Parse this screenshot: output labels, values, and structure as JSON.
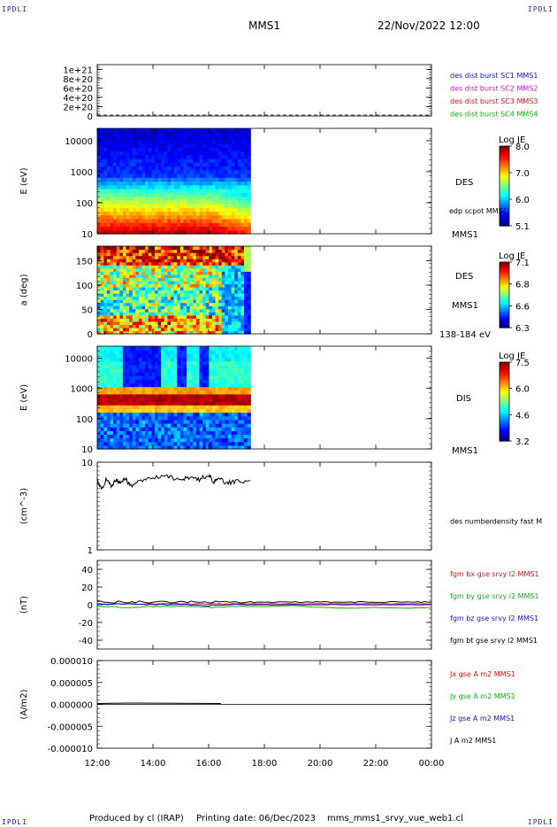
{
  "corner_label": "IPDLI",
  "header": {
    "spacecraft": "MMS1",
    "datetime": "22/Nov/2022 12:00"
  },
  "footer": {
    "produced_by": "Produced by cl (IRAP)",
    "printing_date": "Printing date: 06/Dec/2023",
    "file_name": "mms_mms1_srvy_vue_web1.cl"
  },
  "chart_data": [
    {
      "type": "line",
      "panel": "burst-distribution-flags",
      "yticks": [
        "1e+21",
        "8e+20",
        "6e+20",
        "4e+20",
        "2e+20",
        "0"
      ],
      "ylim": [
        0,
        1.1e+21
      ],
      "legend": [
        {
          "text": "des dist burst SC1 MMS1",
          "color": "#1010e0"
        },
        {
          "text": "des dist burst SC2 MMS2",
          "color": "#d010d0"
        },
        {
          "text": "des dist burst SC3 MMS3",
          "color": "#e01010"
        },
        {
          "text": "des dist burst SC4 MMS4",
          "color": "#10b010"
        }
      ],
      "baseline": 0
    },
    {
      "type": "heatmap",
      "panel": "des-energy-spectrogram",
      "ylabel": "E (eV)",
      "yscale": "log",
      "yticks": [
        "10000",
        "1000",
        "100",
        "10"
      ],
      "ylim": [
        10,
        25000
      ],
      "data_end": "17:30",
      "colorbar": {
        "title": "Log JE",
        "ticks": [
          "8.0",
          "7.0",
          "6.0",
          "5.1"
        ]
      },
      "labels": [
        "DES",
        "edp scpot MMS1",
        "MMS1"
      ]
    },
    {
      "type": "heatmap",
      "panel": "des-pitch-angle",
      "ylabel": "a (deg)",
      "yticks": [
        "150",
        "100",
        "50",
        "0"
      ],
      "ylim": [
        0,
        180
      ],
      "data_end": "17:30",
      "colorbar": {
        "title": "Log JE",
        "ticks": [
          "7.1",
          "6.8",
          "6.6",
          "6.3"
        ]
      },
      "labels": [
        "DES",
        "MMS1",
        "138-184 eV"
      ]
    },
    {
      "type": "heatmap",
      "panel": "dis-energy-spectrogram",
      "ylabel": "E (eV)",
      "yscale": "log",
      "yticks": [
        "10000",
        "1000",
        "100",
        "10"
      ],
      "ylim": [
        10,
        25000
      ],
      "data_end": "17:30",
      "colorbar": {
        "title": "Log JE",
        "ticks": [
          "7.5",
          "6.0",
          "4.6",
          "3.2"
        ]
      },
      "labels": [
        "DIS",
        "MMS1"
      ]
    },
    {
      "type": "line",
      "panel": "density",
      "ylabel": "(cm^-3)",
      "yscale": "log",
      "yticks": [
        "10",
        "1"
      ],
      "ylim": [
        1,
        10
      ],
      "series": [
        {
          "name": "des numberdensity fast M",
          "color": "#000000",
          "x": [
            "12:00",
            "12:10",
            "12:20",
            "12:30",
            "12:40",
            "12:50",
            "13:00",
            "13:10",
            "13:30",
            "14:00",
            "14:30",
            "15:00",
            "15:20",
            "15:40",
            "16:00",
            "16:10",
            "16:20",
            "16:40",
            "17:00",
            "17:30"
          ],
          "y": [
            6.2,
            5.0,
            6.4,
            5.2,
            6.3,
            5.8,
            6.6,
            5.4,
            6.0,
            6.6,
            6.9,
            6.3,
            6.7,
            6.3,
            7.3,
            6.0,
            6.5,
            5.8,
            6.0,
            6.2
          ]
        }
      ]
    },
    {
      "type": "line",
      "panel": "magnetic-field",
      "ylabel": "(nT)",
      "yticks": [
        "40",
        "20",
        "0",
        "-20",
        "-40"
      ],
      "ylim": [
        -50,
        50
      ],
      "series": [
        {
          "name": "fgm bx gse srvy l2 MMS1",
          "color": "#e01010",
          "x": [
            "12:00",
            "13:00",
            "14:00",
            "15:00",
            "16:00",
            "17:00",
            "18:00",
            "19:00",
            "20:00",
            "21:00",
            "22:00",
            "23:00",
            "00:00"
          ],
          "y": [
            1,
            1,
            1,
            1,
            1,
            1,
            1,
            1,
            1,
            1,
            1,
            1,
            1
          ]
        },
        {
          "name": "fgm by gse srvy l2 MMS1",
          "color": "#10b010",
          "x": [
            "12:00",
            "13:00",
            "14:00",
            "15:00",
            "16:00",
            "17:00",
            "18:00",
            "19:00",
            "20:00",
            "21:00",
            "22:00",
            "23:00",
            "00:00"
          ],
          "y": [
            -2,
            -3,
            -2,
            -2,
            -3,
            -2,
            -2,
            -1,
            -3,
            -4,
            -3,
            -4,
            -3
          ]
        },
        {
          "name": "fgm bz gse srvy l2 MMS1",
          "color": "#1010e0",
          "x": [
            "12:00",
            "13:00",
            "14:00",
            "15:00",
            "16:00",
            "17:00",
            "18:00",
            "19:00",
            "20:00",
            "21:00",
            "22:00",
            "23:00",
            "00:00"
          ],
          "y": [
            0,
            1,
            0,
            0,
            -1,
            0,
            0,
            0,
            0,
            0,
            0,
            0,
            0
          ]
        },
        {
          "name": "fgm bt gse srvy l2 MMS1",
          "color": "#000000",
          "x": [
            "12:00",
            "13:00",
            "14:00",
            "15:00",
            "16:00",
            "17:00",
            "18:00",
            "19:00",
            "20:00",
            "21:00",
            "22:00",
            "23:00",
            "00:00"
          ],
          "y": [
            3,
            3,
            3,
            3,
            3,
            3,
            3,
            3,
            3,
            3,
            3,
            3,
            3
          ]
        }
      ]
    },
    {
      "type": "line",
      "panel": "current-density",
      "ylabel": "(A/m2)",
      "yticks": [
        "0.000010",
        "0.000005",
        "0.000000",
        "-0.000005",
        "-0.000010"
      ],
      "ylim": [
        -1e-05,
        1e-05
      ],
      "series": [
        {
          "name": "Jx gse A m2 MMS1",
          "color": "#e01010",
          "y": [
            0
          ]
        },
        {
          "name": "Jy gse A m2 MMS1",
          "color": "#10b010",
          "y": [
            0
          ]
        },
        {
          "name": "Jz gse A m2 MMS1",
          "color": "#1010e0",
          "y": [
            0
          ]
        },
        {
          "name": "J A m2 MMS1",
          "color": "#000000",
          "y": [
            0
          ]
        }
      ]
    }
  ],
  "time_axis": {
    "ticks": [
      "12:00",
      "14:00",
      "16:00",
      "18:00",
      "20:00",
      "22:00",
      "00:00"
    ]
  }
}
